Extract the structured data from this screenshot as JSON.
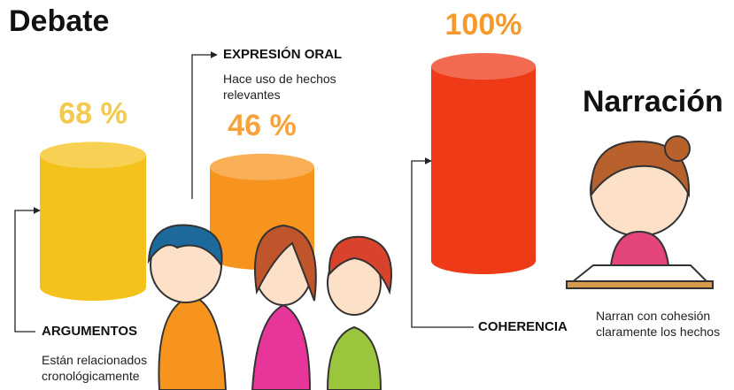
{
  "chart_data": {
    "type": "bar",
    "title": "Debate",
    "categories": [
      "ARGUMENTOS",
      "EXPRESIÓN ORAL",
      "COHERENCIA"
    ],
    "descriptions": [
      "Están relacionados cronológicamente",
      "Hace uso de hechos relevantes",
      null
    ],
    "values": [
      68,
      46,
      100
    ],
    "value_labels": [
      "68 %",
      "46 %",
      "100%"
    ],
    "colors": [
      "#f5c21b",
      "#f7941d",
      "#ee3a16"
    ],
    "label_colors": [
      "#f3c94e",
      "#f7a23a",
      "#f59a2a"
    ]
  },
  "narration": {
    "title": "Narración",
    "text": "Narran con cohesión claramente los hechos"
  }
}
